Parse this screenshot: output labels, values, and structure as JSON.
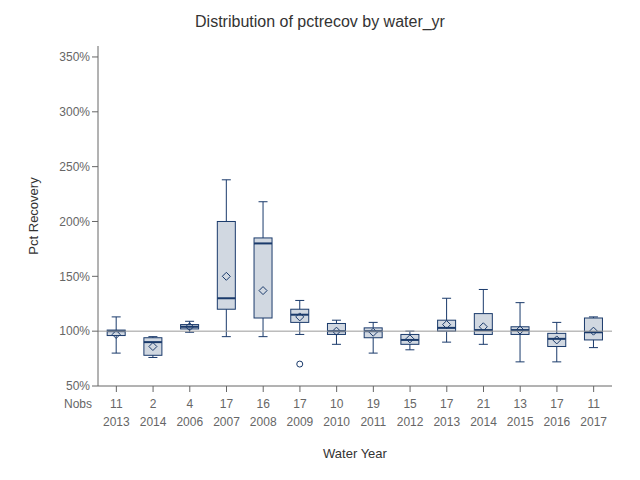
{
  "chart_data": {
    "type": "box",
    "title": "Distribution of pctrecov by water_yr",
    "xlabel": "Water Year",
    "ylabel": "Pct Recovery",
    "categories": [
      "2013",
      "2014",
      "2006",
      "2007",
      "2008",
      "2009",
      "2010",
      "2011",
      "2012",
      "2013",
      "2014",
      "2015",
      "2016",
      "2017"
    ],
    "nobs_label": "Nobs",
    "nobs": [
      11,
      2,
      4,
      17,
      16,
      17,
      10,
      19,
      15,
      17,
      21,
      13,
      17,
      11
    ],
    "boxes": [
      {
        "whislo": 80,
        "q1": 96,
        "med": 100,
        "q3": 101,
        "whishi": 113,
        "mean": 97,
        "fliers": []
      },
      {
        "whislo": 76,
        "q1": 78,
        "med": 90,
        "q3": 94,
        "whishi": 95,
        "mean": 86,
        "fliers": []
      },
      {
        "whislo": 99,
        "q1": 102,
        "med": 104,
        "q3": 106,
        "whishi": 109,
        "mean": 104,
        "fliers": []
      },
      {
        "whislo": 95,
        "q1": 120,
        "med": 130,
        "q3": 200,
        "whishi": 238,
        "mean": 150,
        "fliers": []
      },
      {
        "whislo": 95,
        "q1": 112,
        "med": 180,
        "q3": 185,
        "whishi": 218,
        "mean": 137,
        "fliers": []
      },
      {
        "whislo": 97,
        "q1": 108,
        "med": 115,
        "q3": 120,
        "whishi": 128,
        "mean": 113,
        "fliers": [
          70
        ]
      },
      {
        "whislo": 88,
        "q1": 97,
        "med": 100,
        "q3": 107,
        "whishi": 110,
        "mean": 100,
        "fliers": []
      },
      {
        "whislo": 80,
        "q1": 94,
        "med": 100,
        "q3": 103,
        "whishi": 108,
        "mean": 99,
        "fliers": []
      },
      {
        "whislo": 83,
        "q1": 88,
        "med": 92,
        "q3": 97,
        "whishi": 100,
        "mean": 93,
        "fliers": []
      },
      {
        "whislo": 90,
        "q1": 100,
        "med": 103,
        "q3": 110,
        "whishi": 130,
        "mean": 106,
        "fliers": []
      },
      {
        "whislo": 88,
        "q1": 97,
        "med": 101,
        "q3": 116,
        "whishi": 138,
        "mean": 104,
        "fliers": []
      },
      {
        "whislo": 72,
        "q1": 97,
        "med": 101,
        "q3": 104,
        "whishi": 126,
        "mean": 101,
        "fliers": []
      },
      {
        "whislo": 72,
        "q1": 86,
        "med": 93,
        "q3": 98,
        "whishi": 108,
        "mean": 92,
        "fliers": []
      },
      {
        "whislo": 85,
        "q1": 92,
        "med": 99,
        "q3": 112,
        "whishi": 113,
        "mean": 100,
        "fliers": []
      }
    ],
    "ylim": [
      50,
      360
    ],
    "yticks": [
      {
        "value": 50,
        "label": "50%"
      },
      {
        "value": 100,
        "label": "100%"
      },
      {
        "value": 150,
        "label": "150%"
      },
      {
        "value": 200,
        "label": "200%"
      },
      {
        "value": 250,
        "label": "250%"
      },
      {
        "value": 300,
        "label": "300%"
      },
      {
        "value": 350,
        "label": "350%"
      }
    ],
    "hline": {
      "value": 100,
      "color": "#999999"
    },
    "color": "#1a3a6b",
    "grid": false
  }
}
